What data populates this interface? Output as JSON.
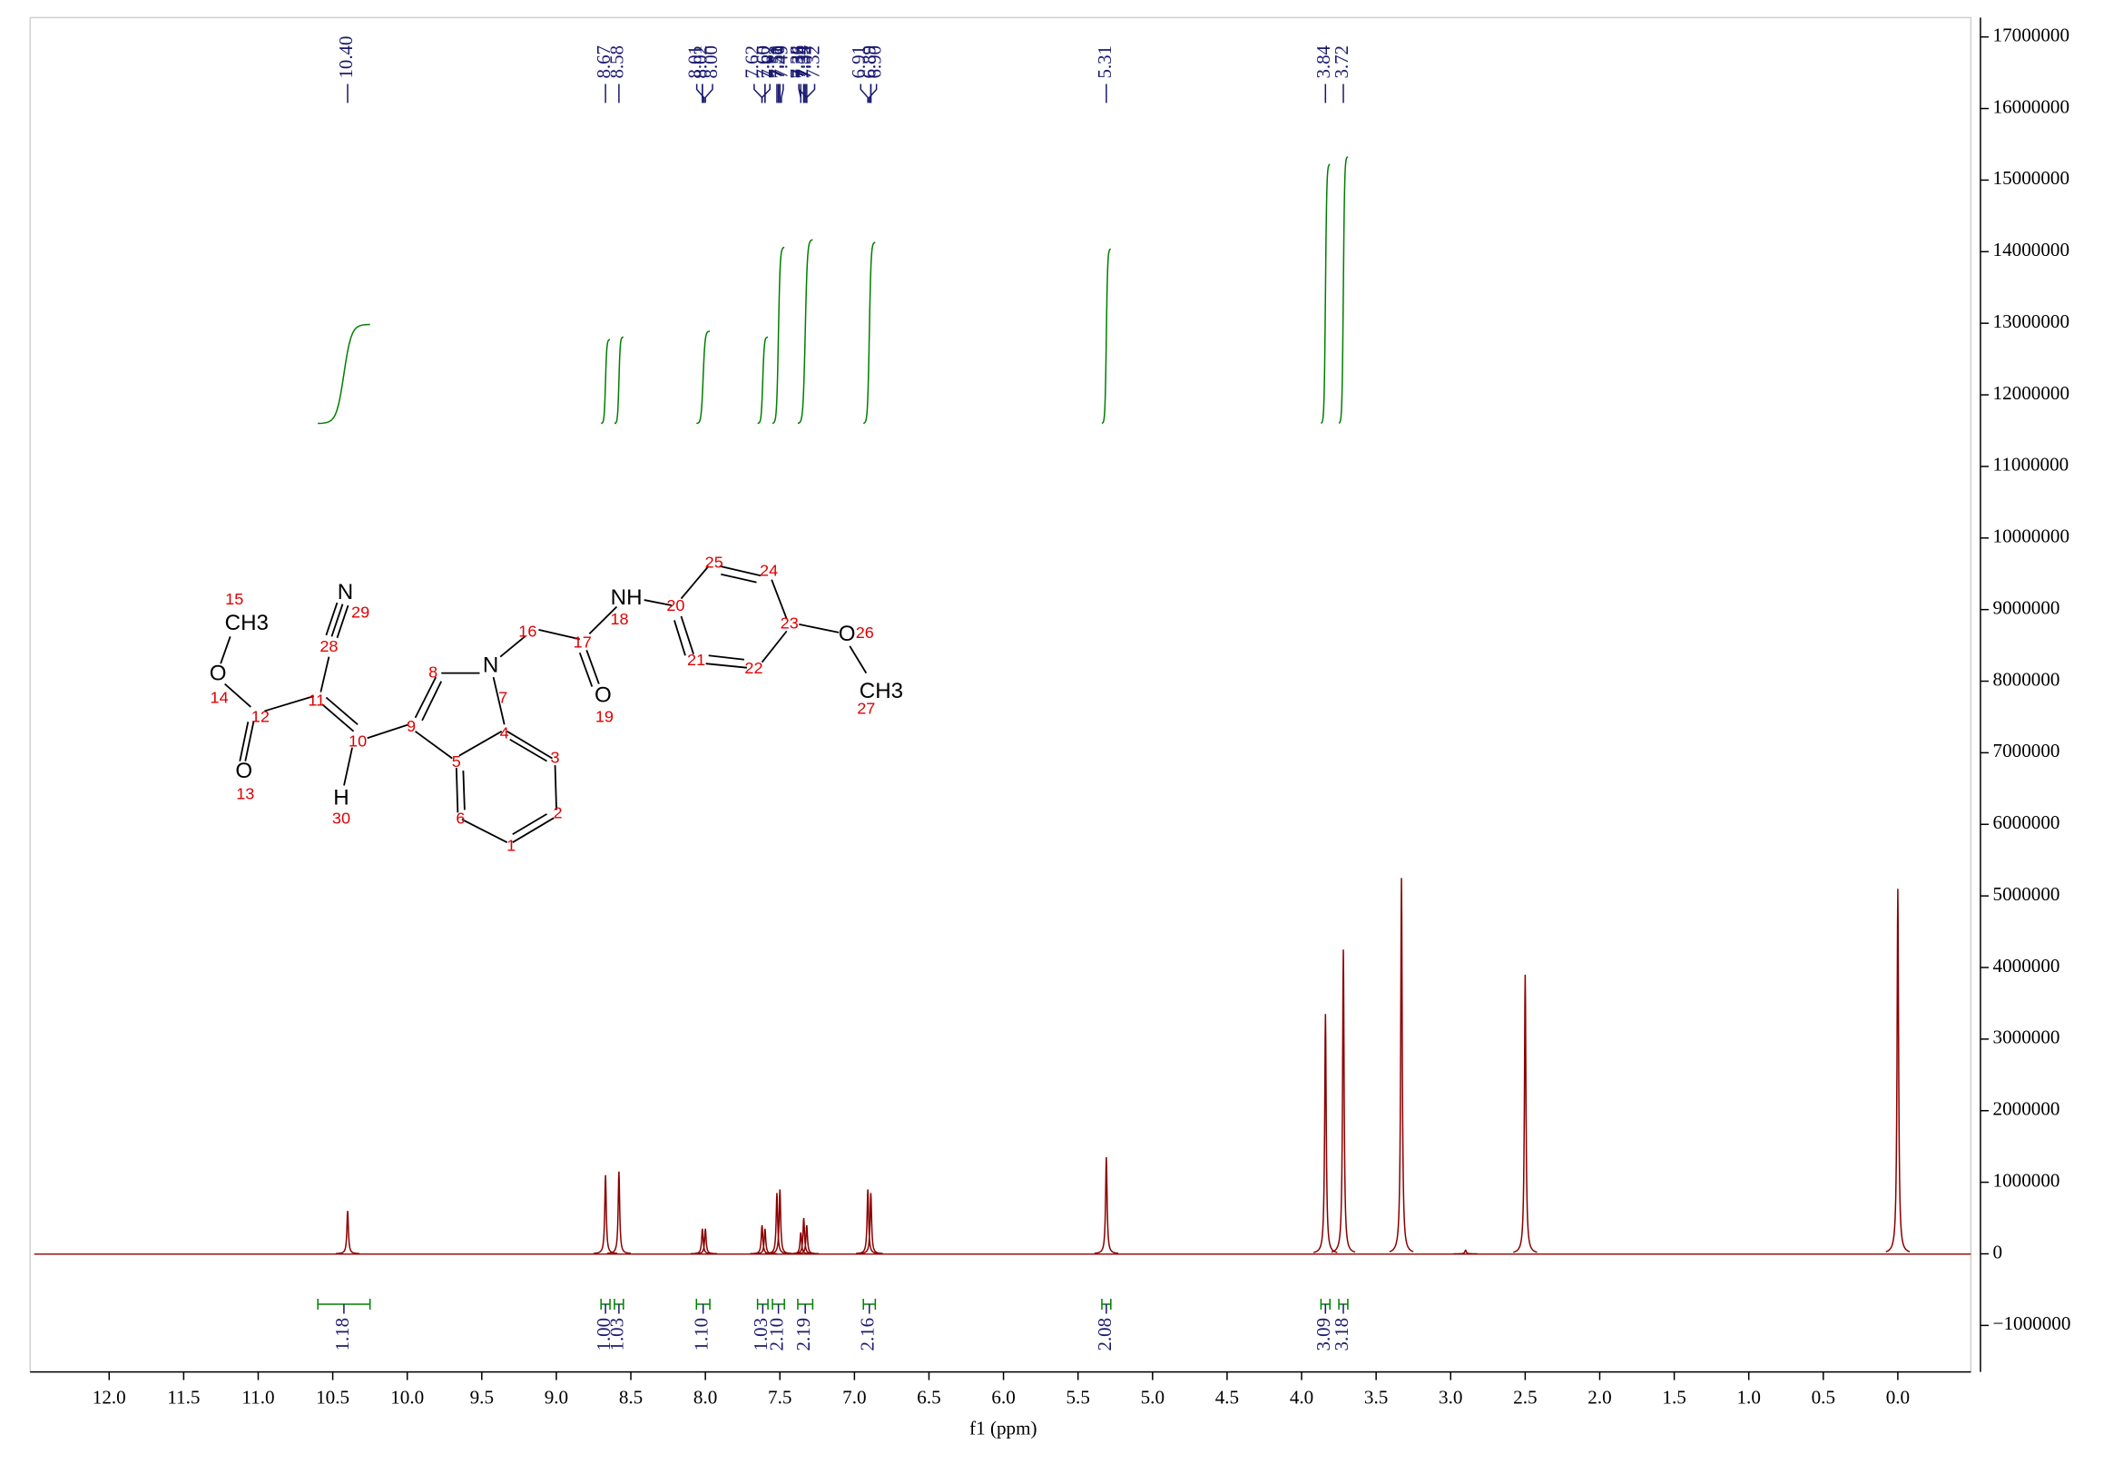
{
  "chart_data": {
    "type": "nmr",
    "x_label": "f1 (ppm)",
    "xlim": [
      12.53,
      -0.49
    ],
    "xticks": [
      {
        "value": 12,
        "label": "12.0"
      },
      11.5,
      {
        "value": 11,
        "label": "11.0"
      },
      10.5,
      {
        "value": 10,
        "label": "10.0"
      },
      9.5,
      {
        "value": 9,
        "label": "9.0"
      },
      8.5,
      {
        "value": 8,
        "label": "8.0"
      },
      7.5,
      {
        "value": 7,
        "label": "7.0"
      },
      6.5,
      {
        "value": 6,
        "label": "6.0"
      },
      5.5,
      {
        "value": 5,
        "label": "5.0"
      },
      4.5,
      {
        "value": 4,
        "label": "4.0"
      },
      3.5,
      {
        "value": 3,
        "label": "3.0"
      },
      2.5,
      {
        "value": 2,
        "label": "2.0"
      },
      1.5,
      {
        "value": 1,
        "label": "1.0"
      },
      0.5,
      {
        "value": 0,
        "label": "0.0"
      }
    ],
    "ylim": [
      -1650000,
      17270000
    ],
    "yticks": [
      {
        "value": -1000000,
        "label": "−1000000"
      },
      0,
      1000000,
      2000000,
      3000000,
      4000000,
      5000000,
      6000000,
      7000000,
      8000000,
      9000000,
      10000000,
      11000000,
      12000000,
      13000000,
      14000000,
      15000000,
      16000000,
      17000000
    ],
    "color": "#8b0000",
    "label_color": "#191970",
    "integral_color": "#008000",
    "peaks": {
      "x": [
        10.4,
        8.67,
        8.58,
        8.02,
        8.0,
        7.62,
        7.6,
        7.52,
        7.5,
        7.36,
        7.34,
        7.32,
        6.91,
        6.89,
        5.31,
        3.84,
        3.72,
        3.33,
        2.9,
        2.5,
        0.0
      ],
      "values": [
        600000,
        1100000,
        1150000,
        350000,
        350000,
        400000,
        350000,
        850000,
        900000,
        300000,
        500000,
        400000,
        900000,
        850000,
        1350000,
        3350000,
        4250000,
        5250000,
        50000,
        3900000,
        5100000
      ]
    },
    "peak_labels": {
      "values": [
        10.4,
        8.67,
        8.58,
        8.02,
        8.02,
        8.01,
        8.0,
        7.62,
        7.62,
        7.6,
        7.6,
        7.52,
        7.51,
        7.5,
        7.49,
        7.36,
        7.36,
        7.34,
        7.34,
        7.33,
        7.32,
        7.32,
        7.32,
        6.91,
        6.9,
        6.89,
        6.89,
        5.31,
        3.84,
        3.72
      ],
      "value_labels": [
        "10.40",
        "8.67",
        "8.58",
        "8.02",
        "8.02",
        "8.01",
        "8.00",
        "7.62",
        "7.62",
        "7.60",
        "7.60",
        "7.52",
        "7.51",
        "7.50",
        "7.49",
        "7.36",
        "7.36",
        "7.34",
        "7.34",
        "7.33",
        "7.32",
        "7.32",
        "7.32",
        "6.91",
        "6.90",
        "6.89",
        "6.89",
        "5.31",
        "3.84",
        "3.72"
      ]
    },
    "integrals": {
      "ranges": [
        [
          10.6,
          10.25
        ],
        [
          8.7,
          8.64
        ],
        [
          8.61,
          8.55
        ],
        [
          8.06,
          7.97
        ],
        [
          7.65,
          7.58
        ],
        [
          7.55,
          7.47
        ],
        [
          7.38,
          7.28
        ],
        [
          6.94,
          6.86
        ],
        [
          5.34,
          5.28
        ],
        [
          3.87,
          3.81
        ],
        [
          3.75,
          3.69
        ]
      ],
      "values": [
        1.18,
        1.0,
        1.03,
        1.1,
        1.03,
        2.1,
        2.19,
        2.16,
        2.08,
        3.09,
        3.18
      ],
      "value_labels": [
        "1.18",
        "1.00",
        "1.03",
        "1.10",
        "1.03",
        "2.10",
        "2.19",
        "2.16",
        "2.08",
        "3.09",
        "3.18"
      ]
    }
  },
  "structure": {
    "labels": [
      "N",
      "29",
      "CH3",
      "15",
      "O",
      "14",
      "28",
      "11",
      "12",
      "O",
      "13",
      "10",
      "H",
      "30",
      "9",
      "8",
      "N",
      "7",
      "16",
      "17",
      "O",
      "19",
      "NH",
      "18",
      "20",
      "25",
      "24",
      "23",
      "O",
      "26",
      "CH3",
      "27",
      "21",
      "22",
      "4",
      "3",
      "2",
      "1",
      "6",
      "5"
    ]
  }
}
